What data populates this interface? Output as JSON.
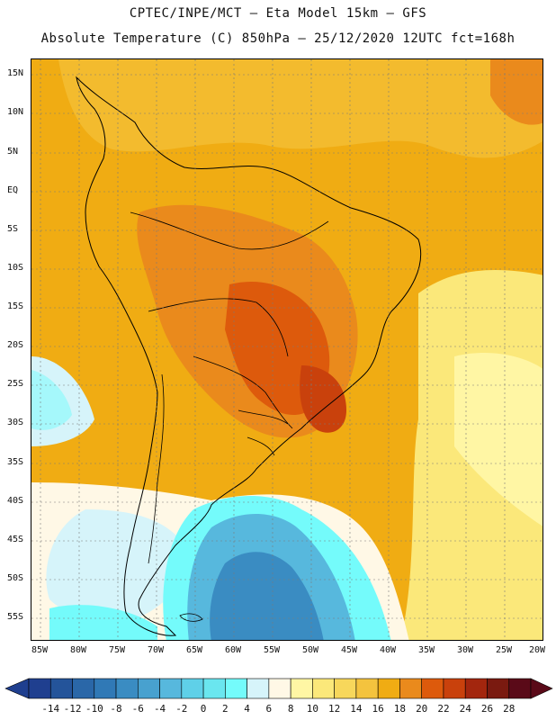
{
  "header": {
    "line1": "CPTEC/INPE/MCT – Eta Model 15km – GFS",
    "line2": "Absolute Temperature (C) 850hPa – 25/12/2020 12UTC fct=168h"
  },
  "axes": {
    "lat_labels": [
      "15N",
      "10N",
      "5N",
      "EQ",
      "5S",
      "10S",
      "15S",
      "20S",
      "25S",
      "30S",
      "35S",
      "40S",
      "45S",
      "50S",
      "55S"
    ],
    "lon_labels": [
      "85W",
      "80W",
      "75W",
      "70W",
      "65W",
      "60W",
      "55W",
      "50W",
      "45W",
      "40W",
      "35W",
      "30W",
      "25W",
      "20W"
    ]
  },
  "colorbar": {
    "labels": [
      "-14",
      "-12",
      "-10",
      "-8",
      "-6",
      "-4",
      "-2",
      "0",
      "2",
      "4",
      "6",
      "8",
      "10",
      "12",
      "14",
      "16",
      "18",
      "20",
      "22",
      "24",
      "26",
      "28"
    ],
    "colors": [
      "#1f3f8f",
      "#24549a",
      "#2a67a8",
      "#3079b6",
      "#3a8cc2",
      "#48a1cf",
      "#57b8dd",
      "#5fd0e8",
      "#6ae6ef",
      "#74fbfb",
      "#d6f4fa",
      "#fff8e6",
      "#fff6a4",
      "#fbe87a",
      "#f7d75b",
      "#f4c33e",
      "#f0ac13",
      "#ea8a1c",
      "#dd5a0c",
      "#c9410c",
      "#a3260e",
      "#7a1a10",
      "#5a0a18"
    ],
    "min_arrow_color": "#1f3f8f",
    "max_arrow_color": "#5a0a18"
  },
  "field": {
    "background_color": "#f0ac13",
    "warm_core_color": "#dd5a0c",
    "hot_core_color": "#c9410c",
    "cold_color": "#3a8cc2",
    "land_outline_color": "#000000",
    "grid_color": "#7a7a7a"
  }
}
